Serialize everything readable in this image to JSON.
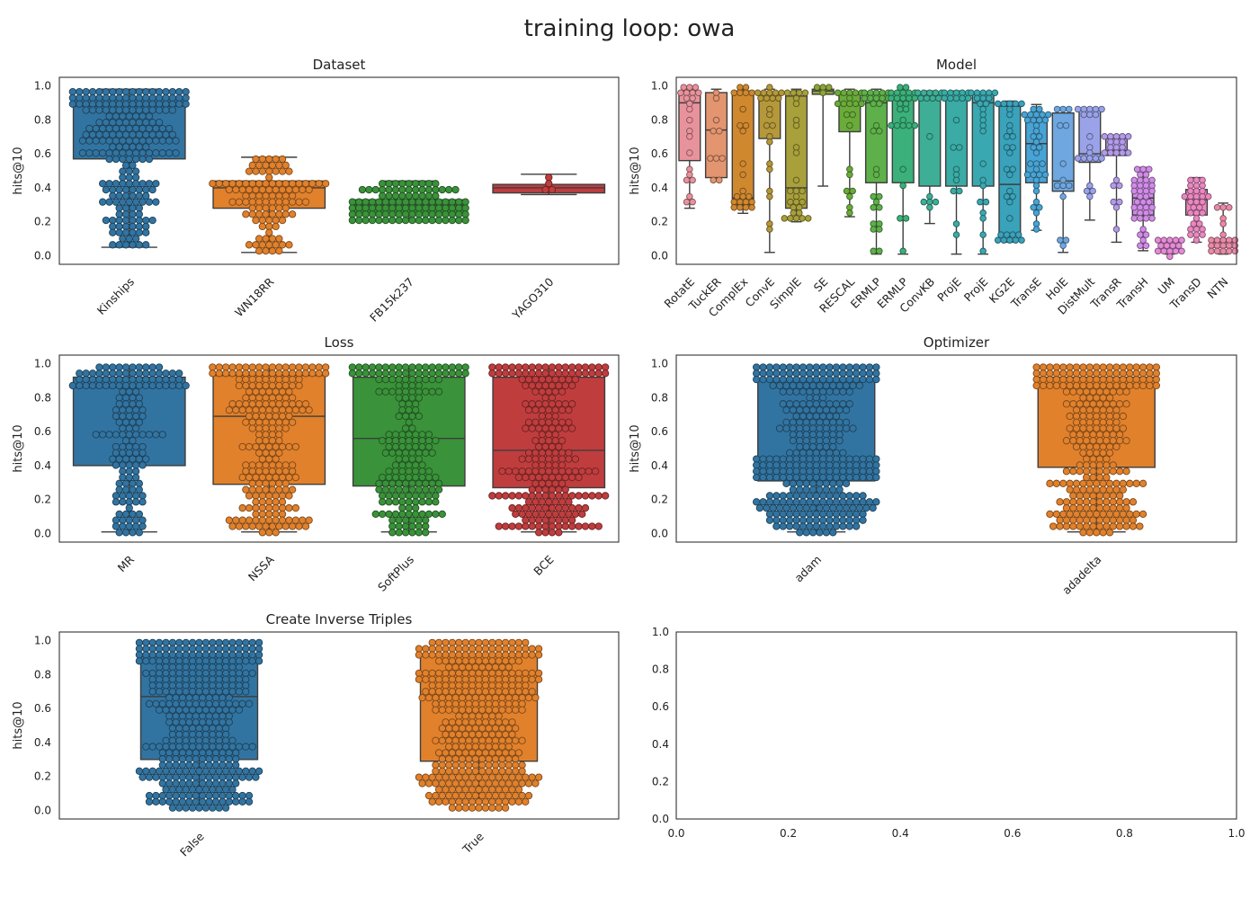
{
  "figure": {
    "title": "training loop: owa"
  },
  "chart_data": [
    {
      "type": "box",
      "title": "Dataset",
      "ylabel": "hits@10",
      "ylim": [
        -0.05,
        1.05
      ],
      "yticks": [
        0.0,
        0.2,
        0.4,
        0.6,
        0.8,
        1.0
      ],
      "grid": false,
      "swarm_overlay": true,
      "categories": [
        "Kinships",
        "WN18RR",
        "FB15k237",
        "YAGO310"
      ],
      "colors": [
        "#3274a1",
        "#e1812c",
        "#3a923a",
        "#c03d3e"
      ],
      "boxes": [
        {
          "whislo": 0.05,
          "q1": 0.57,
          "med": 0.88,
          "q3": 0.93,
          "whishi": 0.98
        },
        {
          "whislo": 0.02,
          "q1": 0.28,
          "med": 0.4,
          "q3": 0.44,
          "whishi": 0.58
        },
        {
          "whislo": 0.2,
          "q1": 0.24,
          "med": 0.3,
          "q3": 0.33,
          "whishi": 0.44
        },
        {
          "whislo": 0.36,
          "q1": 0.37,
          "med": 0.4,
          "q3": 0.42,
          "whishi": 0.48
        }
      ],
      "counts": [
        400,
        120,
        160,
        4
      ]
    },
    {
      "type": "box",
      "title": "Model",
      "ylabel": "hits@10",
      "ylim": [
        -0.05,
        1.05
      ],
      "yticks": [
        0.0,
        0.2,
        0.4,
        0.6,
        0.8,
        1.0
      ],
      "grid": false,
      "swarm_overlay": true,
      "categories": [
        "RotatE",
        "TuckER",
        "ComplEx",
        "ConvE",
        "SimplE",
        "SE",
        "RESCAL",
        "ERMLP",
        "ERMLP",
        "ConvKB",
        "ProjE",
        "ProjE",
        "KG2E",
        "TransE",
        "HolE",
        "DistMult",
        "TransR",
        "TransH",
        "UM",
        "TransD",
        "NTN"
      ],
      "colors": [
        "#e8939c",
        "#e39570",
        "#d0882f",
        "#b4983a",
        "#a8a03a",
        "#8ea43a",
        "#6aab3a",
        "#5eb14a",
        "#3bb07a",
        "#3eae97",
        "#3aaba5",
        "#3aa8b0",
        "#3aa2ba",
        "#48a4d4",
        "#6fa7e0",
        "#9aa3e8",
        "#b49be8",
        "#d08ce6",
        "#e48ad6",
        "#ea88c0",
        "#e88aa8"
      ],
      "boxes": [
        {
          "whislo": 0.28,
          "q1": 0.56,
          "med": 0.9,
          "q3": 0.97,
          "whishi": 0.98
        },
        {
          "whislo": 0.45,
          "q1": 0.46,
          "med": 0.74,
          "q3": 0.96,
          "whishi": 0.98
        },
        {
          "whislo": 0.25,
          "q1": 0.3,
          "med": 0.34,
          "q3": 0.97,
          "whishi": 0.98
        },
        {
          "whislo": 0.02,
          "q1": 0.69,
          "med": 0.93,
          "q3": 0.96,
          "whishi": 0.98
        },
        {
          "whislo": 0.2,
          "q1": 0.28,
          "med": 0.4,
          "q3": 0.94,
          "whishi": 0.98
        },
        {
          "whislo": 0.41,
          "q1": 0.95,
          "med": 0.97,
          "q3": 0.98,
          "whishi": 0.98
        },
        {
          "whislo": 0.23,
          "q1": 0.73,
          "med": 0.89,
          "q3": 0.95,
          "whishi": 0.98
        },
        {
          "whislo": 0.01,
          "q1": 0.43,
          "med": 0.9,
          "q3": 0.95,
          "whishi": 0.98
        },
        {
          "whislo": 0.01,
          "q1": 0.43,
          "med": 0.92,
          "q3": 0.96,
          "whishi": 0.98
        },
        {
          "whislo": 0.19,
          "q1": 0.41,
          "med": 0.92,
          "q3": 0.96,
          "whishi": 0.97
        },
        {
          "whislo": 0.01,
          "q1": 0.41,
          "med": 0.92,
          "q3": 0.96,
          "whishi": 0.97
        },
        {
          "whislo": 0.01,
          "q1": 0.41,
          "med": 0.9,
          "q3": 0.95,
          "whishi": 0.96
        },
        {
          "whislo": 0.08,
          "q1": 0.13,
          "med": 0.42,
          "q3": 0.88,
          "whishi": 0.91
        },
        {
          "whislo": 0.15,
          "q1": 0.43,
          "med": 0.66,
          "q3": 0.8,
          "whishi": 0.89
        },
        {
          "whislo": 0.02,
          "q1": 0.38,
          "med": 0.44,
          "q3": 0.84,
          "whishi": 0.87
        },
        {
          "whislo": 0.21,
          "q1": 0.55,
          "med": 0.6,
          "q3": 0.86,
          "whishi": 0.87
        },
        {
          "whislo": 0.08,
          "q1": 0.59,
          "med": 0.62,
          "q3": 0.69,
          "whishi": 0.71
        },
        {
          "whislo": 0.03,
          "q1": 0.24,
          "med": 0.34,
          "q3": 0.44,
          "whishi": 0.52
        },
        {
          "whislo": 0.01,
          "q1": 0.02,
          "med": 0.05,
          "q3": 0.08,
          "whishi": 0.09
        },
        {
          "whislo": 0.08,
          "q1": 0.24,
          "med": 0.33,
          "q3": 0.39,
          "whishi": 0.46
        },
        {
          "whislo": 0.01,
          "q1": 0.05,
          "med": 0.08,
          "q3": 0.1,
          "whishi": 0.31
        }
      ],
      "counts": [
        22,
        10,
        24,
        24,
        28,
        4,
        30,
        34,
        34,
        16,
        34,
        34,
        40,
        36,
        14,
        36,
        24,
        38,
        20,
        32,
        22
      ]
    },
    {
      "type": "box",
      "title": "Loss",
      "ylabel": "hits@10",
      "ylim": [
        -0.05,
        1.05
      ],
      "yticks": [
        0.0,
        0.2,
        0.4,
        0.6,
        0.8,
        1.0
      ],
      "grid": false,
      "swarm_overlay": true,
      "categories": [
        "MR",
        "NSSA",
        "SoftPlus",
        "BCE"
      ],
      "colors": [
        "#3274a1",
        "#e1812c",
        "#3a923a",
        "#c03d3e"
      ],
      "boxes": [
        {
          "whislo": 0.01,
          "q1": 0.4,
          "med": 0.86,
          "q3": 0.92,
          "whishi": 0.98
        },
        {
          "whislo": 0.01,
          "q1": 0.29,
          "med": 0.69,
          "q3": 0.93,
          "whishi": 0.98
        },
        {
          "whislo": 0.01,
          "q1": 0.28,
          "med": 0.56,
          "q3": 0.92,
          "whishi": 0.98
        },
        {
          "whislo": 0.01,
          "q1": 0.27,
          "med": 0.49,
          "q3": 0.92,
          "whishi": 0.98
        }
      ],
      "counts": [
        180,
        260,
        240,
        260
      ]
    },
    {
      "type": "box",
      "title": "Optimizer",
      "ylabel": "hits@10",
      "ylim": [
        -0.05,
        1.05
      ],
      "yticks": [
        0.0,
        0.2,
        0.4,
        0.6,
        0.8,
        1.0
      ],
      "grid": false,
      "swarm_overlay": true,
      "categories": [
        "adam",
        "adadelta"
      ],
      "colors": [
        "#3274a1",
        "#e1812c"
      ],
      "boxes": [
        {
          "whislo": 0.01,
          "q1": 0.31,
          "med": 0.44,
          "q3": 0.9,
          "whishi": 0.98
        },
        {
          "whislo": 0.01,
          "q1": 0.39,
          "med": 0.88,
          "q3": 0.92,
          "whishi": 0.98
        }
      ],
      "counts": [
        520,
        420
      ]
    },
    {
      "type": "box",
      "title": "Create Inverse Triples",
      "ylabel": "hits@10",
      "ylim": [
        -0.05,
        1.05
      ],
      "yticks": [
        0.0,
        0.2,
        0.4,
        0.6,
        0.8,
        1.0
      ],
      "grid": false,
      "swarm_overlay": true,
      "categories": [
        "False",
        "True"
      ],
      "colors": [
        "#3274a1",
        "#e1812c"
      ],
      "boxes": [
        {
          "whislo": 0.01,
          "q1": 0.3,
          "med": 0.67,
          "q3": 0.92,
          "whishi": 0.98
        },
        {
          "whislo": 0.01,
          "q1": 0.29,
          "med": 0.66,
          "q3": 0.92,
          "whishi": 0.98
        }
      ],
      "counts": [
        480,
        480
      ]
    },
    {
      "type": "empty",
      "title": "",
      "xlim": [
        0.0,
        1.0
      ],
      "ylim": [
        0.0,
        1.0
      ],
      "xticks": [
        0.0,
        0.2,
        0.4,
        0.6,
        0.8,
        1.0
      ],
      "yticks": [
        0.0,
        0.2,
        0.4,
        0.6,
        0.8,
        1.0
      ]
    }
  ]
}
